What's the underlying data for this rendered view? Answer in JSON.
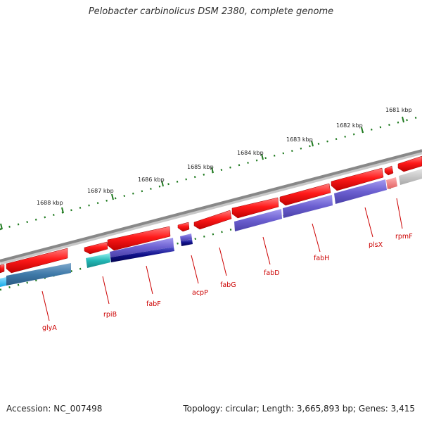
{
  "title": "Pelobacter carbinolicus DSM 2380, complete genome",
  "footer": {
    "accession": "Accession: NC_007498",
    "info": "Topology: circular; Length: 3,665,893 bp; Genes: 3,415"
  },
  "ticks": {
    "labels": [
      "1688 kbp",
      "1687 kbp",
      "1686 kbp",
      "1685 kbp",
      "1684 kbp",
      "1683 kbp",
      "1682 kbp",
      "1681 kbp"
    ]
  },
  "genes": [
    {
      "name": "glyA",
      "color": "#3e79a8"
    },
    {
      "name": "rpiB",
      "color": "#23b7b5"
    },
    {
      "name": "fabF",
      "color": "#0b0b87"
    },
    {
      "name": "acpP",
      "color": "#0b0b87"
    },
    {
      "name": "fabG",
      "color": "#ff0000"
    },
    {
      "name": "fabD",
      "color": "#6b5fd0"
    },
    {
      "name": "fabH",
      "color": "#6b5fd0"
    },
    {
      "name": "plsX",
      "color": "#6b5fd0"
    },
    {
      "name": "rpmF",
      "color": "#f08080"
    }
  ],
  "colors": {
    "gene_fwd": "#ff0000",
    "tick": "#1f7a1f",
    "label_line": "#cc0000",
    "backbone": "#8a8a8a"
  }
}
